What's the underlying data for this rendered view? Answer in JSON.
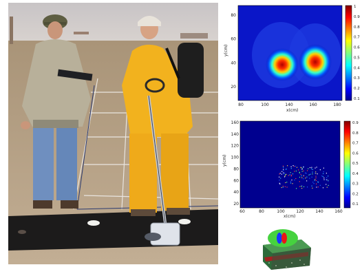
{
  "plots": {
    "top": {
      "x_ticks": [
        "80",
        "100",
        "140",
        "160",
        "180"
      ],
      "y_ticks": [
        "80",
        "60",
        "40",
        "20"
      ],
      "cbar_ticks": [
        "1",
        "0.9",
        "0.8",
        "0.7",
        "0.6",
        "0.5",
        "0.4",
        "0.3",
        "0.2",
        "0.1"
      ],
      "xlabel": "x(cm)",
      "ylabel": "y(cm)"
    },
    "middle": {
      "x_ticks": [
        "60",
        "80",
        "100",
        "120",
        "140",
        "160"
      ],
      "y_ticks": [
        "160",
        "140",
        "120",
        "100",
        "80",
        "60",
        "40",
        "20"
      ],
      "cbar_ticks": [
        "0.9",
        "0.8",
        "0.7",
        "0.6",
        "0.5",
        "0.4",
        "0.3",
        "0.2",
        "0.1"
      ],
      "xlabel": "x(cm)",
      "ylabel": "y(cm)"
    }
  },
  "colors": {
    "jet_dark": "#00008f",
    "jet_mid": "#0040ff",
    "jet_hot": "#ff2000",
    "jacket": "#f2b21e",
    "sand": "#b29e84"
  }
}
